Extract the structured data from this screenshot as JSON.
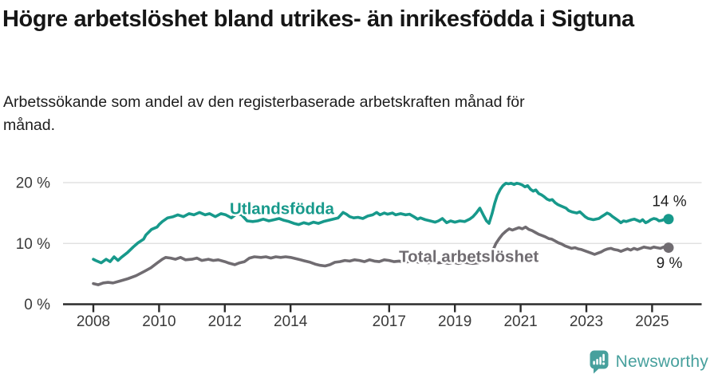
{
  "header": {
    "title": "Högre arbetslöshet bland utrikes- än inrikesfödda i Sigtuna",
    "subtitle": "Arbetssökande som andel av den registerbaserade arbetskraften månad för månad."
  },
  "chart_data": {
    "type": "line",
    "title": "Högre arbetslöshet bland utrikes- än inrikesfödda i Sigtuna",
    "subtitle": "Arbetssökande som andel av den registerbaserade arbetskraften månad för månad.",
    "x_unit": "year",
    "y_unit": "percent",
    "x_range": [
      2008,
      2025.5
    ],
    "y_range": [
      0,
      20
    ],
    "grid": "horizontal",
    "legend_position": "inline-labels",
    "axis_color": "#2b2b2b",
    "grid_color": "#dcdcdc",
    "x_ticks": [
      2008,
      2010,
      2012,
      2014,
      2017,
      2019,
      2021,
      2023,
      2025
    ],
    "x_tick_labels": [
      "2008",
      "2010",
      "2012",
      "2014",
      "2017",
      "2019",
      "2021",
      "2023",
      "2025"
    ],
    "y_ticks": [
      0,
      10,
      20
    ],
    "y_tick_labels": [
      "0 %",
      "10 %",
      "20 %"
    ],
    "series": [
      {
        "name": "Utlandsfödda",
        "color": "#17998b",
        "end_label": "14 %",
        "end_value": 14,
        "label_x": 2012.15,
        "label_y": 14.82,
        "points": [
          [
            2008.0,
            7.4
          ],
          [
            2008.07,
            7.2
          ],
          [
            2008.24,
            6.8
          ],
          [
            2008.39,
            7.4
          ],
          [
            2008.51,
            7.0
          ],
          [
            2008.63,
            7.8
          ],
          [
            2008.75,
            7.2
          ],
          [
            2008.85,
            7.7
          ],
          [
            2009.04,
            8.5
          ],
          [
            2009.21,
            9.4
          ],
          [
            2009.36,
            10.1
          ],
          [
            2009.53,
            10.7
          ],
          [
            2009.6,
            11.4
          ],
          [
            2009.77,
            12.3
          ],
          [
            2009.94,
            12.7
          ],
          [
            2010.0,
            13.1
          ],
          [
            2010.1,
            13.6
          ],
          [
            2010.26,
            14.2
          ],
          [
            2010.43,
            14.4
          ],
          [
            2010.57,
            14.7
          ],
          [
            2010.74,
            14.4
          ],
          [
            2010.91,
            14.9
          ],
          [
            2011.06,
            14.7
          ],
          [
            2011.23,
            15.1
          ],
          [
            2011.4,
            14.7
          ],
          [
            2011.54,
            14.9
          ],
          [
            2011.71,
            14.4
          ],
          [
            2011.88,
            14.9
          ],
          [
            2012.03,
            14.7
          ],
          [
            2012.2,
            14.2
          ],
          [
            2012.37,
            14.9
          ],
          [
            2012.51,
            14.7
          ],
          [
            2012.68,
            13.7
          ],
          [
            2012.85,
            13.6
          ],
          [
            2013.0,
            13.7
          ],
          [
            2013.17,
            14.0
          ],
          [
            2013.34,
            13.7
          ],
          [
            2013.5,
            13.9
          ],
          [
            2013.65,
            14.1
          ],
          [
            2013.8,
            13.8
          ],
          [
            2013.95,
            13.6
          ],
          [
            2014.1,
            13.3
          ],
          [
            2014.25,
            13.1
          ],
          [
            2014.4,
            13.4
          ],
          [
            2014.55,
            13.2
          ],
          [
            2014.7,
            13.5
          ],
          [
            2014.85,
            13.3
          ],
          [
            2015.0,
            13.6
          ],
          [
            2015.15,
            13.8
          ],
          [
            2015.3,
            14.0
          ],
          [
            2015.45,
            14.2
          ],
          [
            2015.6,
            15.1
          ],
          [
            2015.7,
            14.8
          ],
          [
            2015.8,
            14.4
          ],
          [
            2015.92,
            14.2
          ],
          [
            2016.05,
            14.3
          ],
          [
            2016.2,
            14.1
          ],
          [
            2016.35,
            14.5
          ],
          [
            2016.5,
            14.7
          ],
          [
            2016.62,
            15.1
          ],
          [
            2016.72,
            14.7
          ],
          [
            2016.85,
            15.0
          ],
          [
            2016.95,
            14.8
          ],
          [
            2017.1,
            15.0
          ],
          [
            2017.2,
            14.7
          ],
          [
            2017.35,
            14.9
          ],
          [
            2017.5,
            14.7
          ],
          [
            2017.62,
            14.8
          ],
          [
            2017.75,
            14.4
          ],
          [
            2017.87,
            14.0
          ],
          [
            2017.95,
            14.2
          ],
          [
            2018.1,
            13.9
          ],
          [
            2018.25,
            13.7
          ],
          [
            2018.4,
            13.5
          ],
          [
            2018.5,
            13.7
          ],
          [
            2018.62,
            14.1
          ],
          [
            2018.75,
            13.4
          ],
          [
            2018.87,
            13.7
          ],
          [
            2019.0,
            13.5
          ],
          [
            2019.15,
            13.7
          ],
          [
            2019.3,
            13.6
          ],
          [
            2019.45,
            14.0
          ],
          [
            2019.55,
            14.4
          ],
          [
            2019.65,
            15.0
          ],
          [
            2019.76,
            15.8
          ],
          [
            2019.88,
            14.5
          ],
          [
            2019.96,
            13.7
          ],
          [
            2020.04,
            13.3
          ],
          [
            2020.13,
            14.9
          ],
          [
            2020.21,
            16.6
          ],
          [
            2020.29,
            17.9
          ],
          [
            2020.38,
            18.9
          ],
          [
            2020.46,
            19.5
          ],
          [
            2020.55,
            19.9
          ],
          [
            2020.63,
            19.8
          ],
          [
            2020.71,
            19.9
          ],
          [
            2020.8,
            19.7
          ],
          [
            2020.88,
            19.9
          ],
          [
            2020.96,
            19.8
          ],
          [
            2021.05,
            19.6
          ],
          [
            2021.13,
            19.3
          ],
          [
            2021.21,
            19.5
          ],
          [
            2021.3,
            18.9
          ],
          [
            2021.38,
            18.6
          ],
          [
            2021.46,
            18.8
          ],
          [
            2021.55,
            18.2
          ],
          [
            2021.63,
            18.0
          ],
          [
            2021.71,
            17.7
          ],
          [
            2021.8,
            17.3
          ],
          [
            2021.88,
            17.1
          ],
          [
            2021.96,
            17.2
          ],
          [
            2022.05,
            16.7
          ],
          [
            2022.13,
            16.4
          ],
          [
            2022.21,
            16.2
          ],
          [
            2022.38,
            15.8
          ],
          [
            2022.46,
            15.4
          ],
          [
            2022.55,
            15.2
          ],
          [
            2022.71,
            15.0
          ],
          [
            2022.8,
            15.2
          ],
          [
            2022.88,
            14.8
          ],
          [
            2022.96,
            14.4
          ],
          [
            2023.05,
            14.1
          ],
          [
            2023.21,
            13.9
          ],
          [
            2023.38,
            14.1
          ],
          [
            2023.46,
            14.4
          ],
          [
            2023.55,
            14.7
          ],
          [
            2023.63,
            15.0
          ],
          [
            2023.71,
            14.8
          ],
          [
            2023.8,
            14.4
          ],
          [
            2023.88,
            14.1
          ],
          [
            2023.96,
            13.8
          ],
          [
            2024.05,
            13.4
          ],
          [
            2024.13,
            13.7
          ],
          [
            2024.21,
            13.6
          ],
          [
            2024.38,
            13.9
          ],
          [
            2024.46,
            14.0
          ],
          [
            2024.55,
            13.8
          ],
          [
            2024.63,
            13.6
          ],
          [
            2024.71,
            13.9
          ],
          [
            2024.8,
            13.4
          ],
          [
            2024.88,
            13.6
          ],
          [
            2024.96,
            13.9
          ],
          [
            2025.05,
            14.1
          ],
          [
            2025.13,
            14.0
          ],
          [
            2025.21,
            13.7
          ],
          [
            2025.3,
            13.8
          ],
          [
            2025.38,
            14.0
          ],
          [
            2025.46,
            13.9
          ],
          [
            2025.5,
            14.0
          ]
        ]
      },
      {
        "name": "Total arbetslöshet",
        "color": "#706c71",
        "end_label": "9 %",
        "end_value": 9,
        "label_x": 2017.3,
        "label_y": 6.95,
        "points": [
          [
            2008.0,
            3.4
          ],
          [
            2008.15,
            3.2
          ],
          [
            2008.3,
            3.5
          ],
          [
            2008.45,
            3.6
          ],
          [
            2008.6,
            3.5
          ],
          [
            2008.8,
            3.8
          ],
          [
            2009.05,
            4.2
          ],
          [
            2009.3,
            4.7
          ],
          [
            2009.55,
            5.4
          ],
          [
            2009.75,
            6.0
          ],
          [
            2009.95,
            6.8
          ],
          [
            2010.1,
            7.4
          ],
          [
            2010.2,
            7.7
          ],
          [
            2010.35,
            7.6
          ],
          [
            2010.5,
            7.4
          ],
          [
            2010.65,
            7.7
          ],
          [
            2010.8,
            7.3
          ],
          [
            2011.0,
            7.4
          ],
          [
            2011.15,
            7.6
          ],
          [
            2011.3,
            7.2
          ],
          [
            2011.5,
            7.4
          ],
          [
            2011.65,
            7.2
          ],
          [
            2011.8,
            7.3
          ],
          [
            2012.0,
            7.0
          ],
          [
            2012.1,
            6.8
          ],
          [
            2012.3,
            6.5
          ],
          [
            2012.45,
            6.8
          ],
          [
            2012.6,
            7.0
          ],
          [
            2012.75,
            7.6
          ],
          [
            2012.9,
            7.8
          ],
          [
            2013.1,
            7.7
          ],
          [
            2013.25,
            7.8
          ],
          [
            2013.4,
            7.6
          ],
          [
            2013.55,
            7.8
          ],
          [
            2013.7,
            7.7
          ],
          [
            2013.85,
            7.8
          ],
          [
            2014.0,
            7.7
          ],
          [
            2014.15,
            7.5
          ],
          [
            2014.3,
            7.3
          ],
          [
            2014.45,
            7.1
          ],
          [
            2014.6,
            6.9
          ],
          [
            2014.75,
            6.6
          ],
          [
            2014.9,
            6.4
          ],
          [
            2015.05,
            6.3
          ],
          [
            2015.2,
            6.5
          ],
          [
            2015.35,
            6.9
          ],
          [
            2015.5,
            7.0
          ],
          [
            2015.65,
            7.2
          ],
          [
            2015.8,
            7.1
          ],
          [
            2015.95,
            7.3
          ],
          [
            2016.1,
            7.2
          ],
          [
            2016.25,
            7.0
          ],
          [
            2016.4,
            7.3
          ],
          [
            2016.55,
            7.1
          ],
          [
            2016.7,
            7.0
          ],
          [
            2016.85,
            7.3
          ],
          [
            2017.0,
            7.2
          ],
          [
            2017.15,
            7.0
          ],
          [
            2017.3,
            7.1
          ],
          [
            2017.45,
            6.9
          ],
          [
            2017.6,
            7.0
          ],
          [
            2017.75,
            7.1
          ],
          [
            2017.9,
            6.9
          ],
          [
            2018.05,
            7.0
          ],
          [
            2018.2,
            6.8
          ],
          [
            2018.35,
            7.0
          ],
          [
            2018.5,
            6.8
          ],
          [
            2018.65,
            6.9
          ],
          [
            2018.8,
            6.7
          ],
          [
            2018.95,
            6.9
          ],
          [
            2019.1,
            6.7
          ],
          [
            2019.25,
            6.9
          ],
          [
            2019.4,
            6.8
          ],
          [
            2019.55,
            6.7
          ],
          [
            2019.7,
            6.8
          ],
          [
            2019.85,
            7.0
          ],
          [
            2019.95,
            7.2
          ],
          [
            2020.05,
            7.6
          ],
          [
            2020.15,
            8.8
          ],
          [
            2020.25,
            10.0
          ],
          [
            2020.35,
            10.8
          ],
          [
            2020.45,
            11.5
          ],
          [
            2020.55,
            12.0
          ],
          [
            2020.65,
            12.4
          ],
          [
            2020.75,
            12.2
          ],
          [
            2020.85,
            12.4
          ],
          [
            2020.95,
            12.6
          ],
          [
            2021.05,
            12.4
          ],
          [
            2021.15,
            12.7
          ],
          [
            2021.25,
            12.3
          ],
          [
            2021.35,
            12.1
          ],
          [
            2021.45,
            11.8
          ],
          [
            2021.55,
            11.5
          ],
          [
            2021.65,
            11.3
          ],
          [
            2021.75,
            11.1
          ],
          [
            2021.85,
            10.8
          ],
          [
            2021.95,
            10.7
          ],
          [
            2022.05,
            10.4
          ],
          [
            2022.15,
            10.1
          ],
          [
            2022.25,
            9.9
          ],
          [
            2022.35,
            9.6
          ],
          [
            2022.45,
            9.4
          ],
          [
            2022.55,
            9.2
          ],
          [
            2022.65,
            9.3
          ],
          [
            2022.75,
            9.1
          ],
          [
            2022.85,
            9.0
          ],
          [
            2022.95,
            8.8
          ],
          [
            2023.05,
            8.6
          ],
          [
            2023.15,
            8.4
          ],
          [
            2023.25,
            8.2
          ],
          [
            2023.35,
            8.4
          ],
          [
            2023.45,
            8.6
          ],
          [
            2023.55,
            8.9
          ],
          [
            2023.65,
            9.1
          ],
          [
            2023.75,
            9.2
          ],
          [
            2023.85,
            9.0
          ],
          [
            2023.95,
            8.9
          ],
          [
            2024.05,
            8.7
          ],
          [
            2024.15,
            8.9
          ],
          [
            2024.25,
            9.1
          ],
          [
            2024.35,
            8.9
          ],
          [
            2024.45,
            9.2
          ],
          [
            2024.55,
            9.0
          ],
          [
            2024.65,
            9.2
          ],
          [
            2024.75,
            9.4
          ],
          [
            2024.85,
            9.3
          ],
          [
            2024.95,
            9.2
          ],
          [
            2025.05,
            9.4
          ],
          [
            2025.15,
            9.3
          ],
          [
            2025.25,
            9.2
          ],
          [
            2025.35,
            9.4
          ],
          [
            2025.45,
            9.2
          ],
          [
            2025.5,
            9.3
          ]
        ]
      }
    ]
  },
  "footer": {
    "brand": "Newsworthy",
    "logo_color": "#47a09d",
    "logo_icon": "newsworthy-bars-exclamation-icon"
  }
}
